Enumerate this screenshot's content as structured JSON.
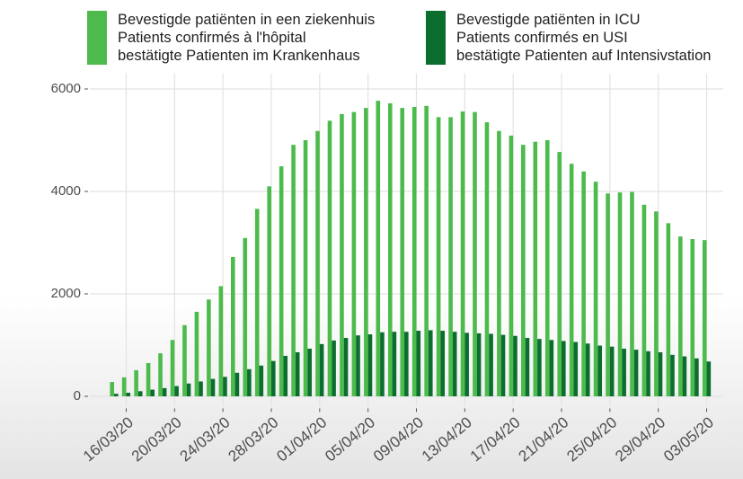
{
  "chart_data": {
    "type": "bar",
    "categories": [
      null,
      "16/03/20",
      null,
      null,
      null,
      "20/03/20",
      null,
      null,
      null,
      "24/03/20",
      null,
      null,
      null,
      "28/03/20",
      null,
      null,
      null,
      "01/04/20",
      null,
      null,
      null,
      "05/04/20",
      null,
      null,
      null,
      "09/04/20",
      null,
      null,
      null,
      "13/04/20",
      null,
      null,
      null,
      "17/04/20",
      null,
      null,
      null,
      "21/04/20",
      null,
      null,
      null,
      "25/04/20",
      null,
      null,
      null,
      "29/04/20",
      null,
      null,
      null,
      "03/05/20"
    ],
    "series": [
      {
        "name": "Bevestigde patiënten in een ziekenhuis\nPatients confirmés à l'hôpital\nbestätigte Patienten im Krankenhaus",
        "color": "#4cbb4c",
        "values": [
          280,
          370,
          510,
          650,
          840,
          1100,
          1390,
          1650,
          1890,
          2150,
          2720,
          3090,
          3660,
          4100,
          4490,
          4910,
          5000,
          5180,
          5380,
          5510,
          5550,
          5630,
          5770,
          5720,
          5630,
          5650,
          5670,
          5450,
          5450,
          5560,
          5550,
          5350,
          5180,
          5090,
          4910,
          4970,
          5000,
          4770,
          4540,
          4390,
          4190,
          3960,
          3980,
          3990,
          3740,
          3610,
          3380,
          3120,
          3070,
          3050
        ]
      },
      {
        "name": "Bevestigde patiënten in ICU\nPatients confirmés en USI\nbestätigte Patienten auf Intensivstation",
        "color": "#0b6e2f",
        "values": [
          50,
          70,
          100,
          130,
          160,
          200,
          250,
          290,
          340,
          380,
          460,
          530,
          600,
          690,
          790,
          860,
          930,
          1020,
          1090,
          1140,
          1190,
          1210,
          1250,
          1260,
          1260,
          1280,
          1290,
          1280,
          1260,
          1240,
          1230,
          1220,
          1200,
          1180,
          1140,
          1120,
          1100,
          1080,
          1060,
          1030,
          990,
          970,
          930,
          910,
          880,
          860,
          810,
          780,
          740,
          680
        ]
      }
    ],
    "ylim": [
      -200,
      6300
    ],
    "yticks": [
      0,
      2000,
      4000,
      6000
    ],
    "grid": true
  }
}
